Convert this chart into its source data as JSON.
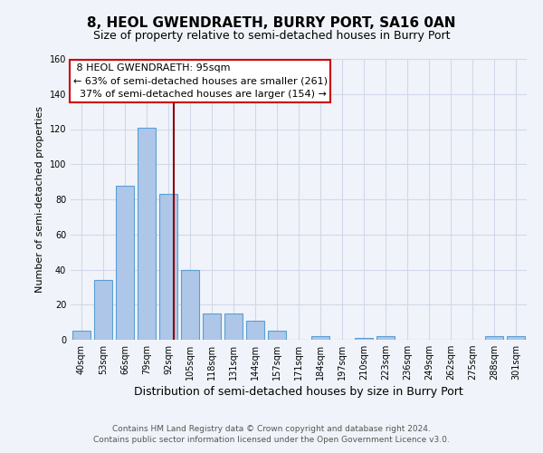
{
  "title": "8, HEOL GWENDRAETH, BURRY PORT, SA16 0AN",
  "subtitle": "Size of property relative to semi-detached houses in Burry Port",
  "xlabel": "Distribution of semi-detached houses by size in Burry Port",
  "ylabel": "Number of semi-detached properties",
  "footer1": "Contains HM Land Registry data © Crown copyright and database right 2024.",
  "footer2": "Contains public sector information licensed under the Open Government Licence v3.0.",
  "categories": [
    "40sqm",
    "53sqm",
    "66sqm",
    "79sqm",
    "92sqm",
    "105sqm",
    "118sqm",
    "131sqm",
    "144sqm",
    "157sqm",
    "171sqm",
    "184sqm",
    "197sqm",
    "210sqm",
    "223sqm",
    "236sqm",
    "249sqm",
    "262sqm",
    "275sqm",
    "288sqm",
    "301sqm"
  ],
  "values": [
    5,
    34,
    88,
    121,
    83,
    40,
    15,
    15,
    11,
    5,
    0,
    2,
    0,
    1,
    2,
    0,
    0,
    0,
    0,
    2,
    2
  ],
  "bar_color": "#aec6e8",
  "bar_edge_color": "#5a9fd4",
  "grid_color": "#d0d8e8",
  "background_color": "#f0f4fa",
  "property_label": "8 HEOL GWENDRAETH: 95sqm",
  "pct_smaller": 63,
  "count_smaller": 261,
  "pct_larger": 37,
  "count_larger": 154,
  "vline_color": "#8b0000",
  "annotation_box_color": "#ffffff",
  "annotation_box_edge": "#cc0000",
  "ylim": [
    0,
    160
  ],
  "title_fontsize": 11,
  "subtitle_fontsize": 9,
  "xlabel_fontsize": 9,
  "ylabel_fontsize": 8,
  "tick_fontsize": 7,
  "annotation_fontsize": 8,
  "footer_fontsize": 6.5
}
